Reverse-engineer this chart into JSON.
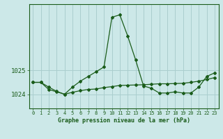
{
  "title": "Graphe pression niveau de la mer (hPa)",
  "background_color": "#cce8e8",
  "line_color": "#1a5c1a",
  "grid_color": "#aacece",
  "series1_x": [
    0,
    1,
    2,
    3,
    4,
    5,
    6,
    7,
    8,
    9,
    10,
    11,
    12,
    13,
    14,
    15,
    16,
    17,
    18,
    19,
    20,
    21,
    22,
    23
  ],
  "series1_y": [
    1024.5,
    1024.5,
    1024.2,
    1024.1,
    1024.0,
    1024.3,
    1024.55,
    1024.75,
    1024.95,
    1025.15,
    1027.25,
    1027.35,
    1026.45,
    1025.45,
    1024.35,
    1024.25,
    1024.05,
    1024.05,
    1024.1,
    1024.05,
    1024.05,
    1024.3,
    1024.75,
    1024.9
  ],
  "series2_x": [
    0,
    1,
    2,
    3,
    4,
    5,
    6,
    7,
    8,
    9,
    10,
    11,
    12,
    13,
    14,
    15,
    16,
    17,
    18,
    19,
    20,
    21,
    22,
    23
  ],
  "series2_y": [
    1024.5,
    1024.5,
    1024.3,
    1024.12,
    1024.0,
    1024.08,
    1024.15,
    1024.2,
    1024.22,
    1024.28,
    1024.32,
    1024.37,
    1024.38,
    1024.39,
    1024.4,
    1024.42,
    1024.44,
    1024.44,
    1024.45,
    1024.46,
    1024.5,
    1024.55,
    1024.62,
    1024.7
  ],
  "yticks": [
    1024,
    1025
  ],
  "xlim": [
    -0.5,
    23.5
  ],
  "ylim": [
    1023.4,
    1027.8
  ],
  "xticks": [
    0,
    1,
    2,
    3,
    4,
    5,
    6,
    7,
    8,
    9,
    10,
    11,
    12,
    13,
    14,
    15,
    16,
    17,
    18,
    19,
    20,
    21,
    22,
    23
  ]
}
